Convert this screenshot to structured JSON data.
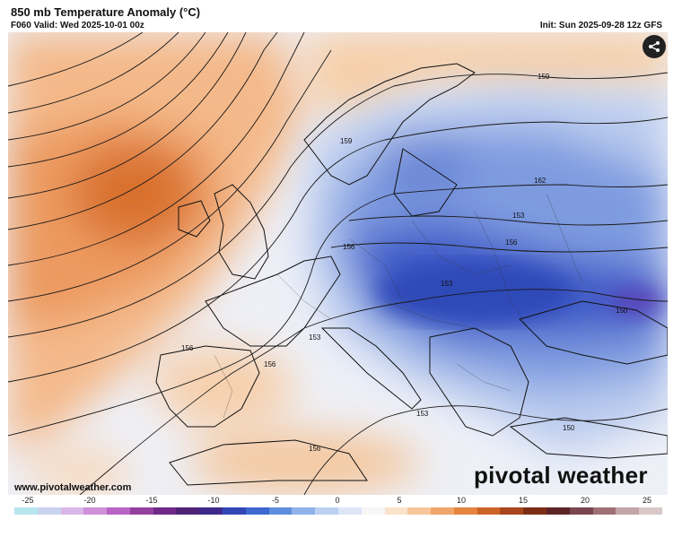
{
  "header": {
    "title": "850 mb Temperature Anomaly (°C)",
    "valid": "F060 Valid: Wed 2025-10-01 00z",
    "init": "Init: Sun 2025-09-28 12z GFS"
  },
  "map": {
    "contour_labels": [
      "159",
      "159",
      "162",
      "153",
      "156",
      "156",
      "153",
      "150",
      "156",
      "153",
      "156",
      "153",
      "150",
      "156"
    ]
  },
  "footer": {
    "website": "www.pivotalweather.com",
    "brand": "pivotal weather"
  },
  "colorbar": {
    "ticks": [
      "-25",
      "-20",
      "-15",
      "-10",
      "-5",
      "0",
      "5",
      "10",
      "15",
      "20",
      "25"
    ],
    "colors": [
      "#b8e6ef",
      "#c9d2ee",
      "#d9b8e9",
      "#cf8fd9",
      "#b764c4",
      "#94409e",
      "#6e2a86",
      "#502377",
      "#3d2a8a",
      "#3346b8",
      "#3e68cf",
      "#5f8ede",
      "#8fb2ea",
      "#bcd0f1",
      "#dde6f7",
      "#f6f6f6",
      "#fbe2cb",
      "#f7c69a",
      "#f0a66b",
      "#e4843f",
      "#cc6328",
      "#a8461c",
      "#7d2d16",
      "#5e2426",
      "#7a4650",
      "#9e7076",
      "#c3a4a8",
      "#d9c8c9"
    ]
  },
  "icons": {
    "share": "share-icon"
  }
}
